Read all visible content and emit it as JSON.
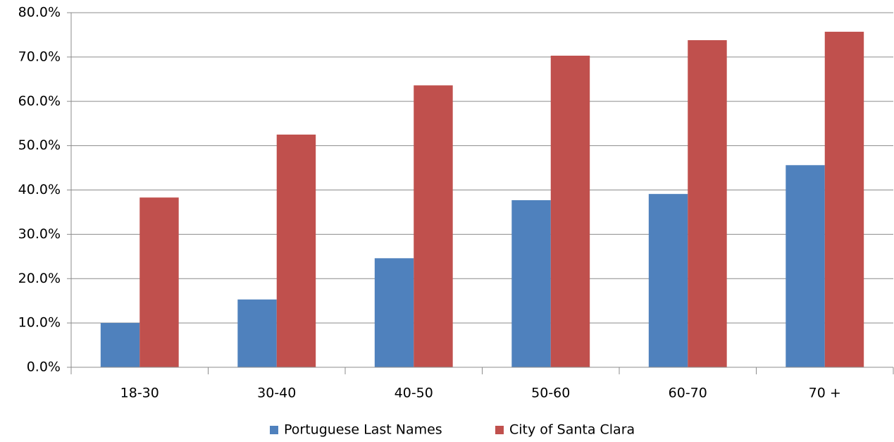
{
  "chart_data": {
    "type": "bar",
    "categories": [
      "18-30",
      "30-40",
      "40-50",
      "50-60",
      "60-70",
      "70 +"
    ],
    "series": [
      {
        "name": "Portuguese Last Names",
        "color": "#4f81bd",
        "values": [
          10.0,
          15.3,
          24.6,
          37.7,
          39.1,
          45.6
        ]
      },
      {
        "name": "City of Santa Clara",
        "color": "#c0504d",
        "values": [
          38.3,
          52.5,
          63.6,
          70.3,
          73.8,
          75.7
        ]
      }
    ],
    "ylim": [
      0,
      80
    ],
    "yticks": [
      {
        "value": 0,
        "label": "0.0%"
      },
      {
        "value": 10,
        "label": "10.0%"
      },
      {
        "value": 20,
        "label": "20.0%"
      },
      {
        "value": 30,
        "label": "30.0%"
      },
      {
        "value": 40,
        "label": "40.0%"
      },
      {
        "value": 50,
        "label": "50.0%"
      },
      {
        "value": 60,
        "label": "60.0%"
      },
      {
        "value": 70,
        "label": "70.0%"
      },
      {
        "value": 80,
        "label": "80.0%"
      }
    ],
    "grid": true,
    "legend": "bottom"
  }
}
